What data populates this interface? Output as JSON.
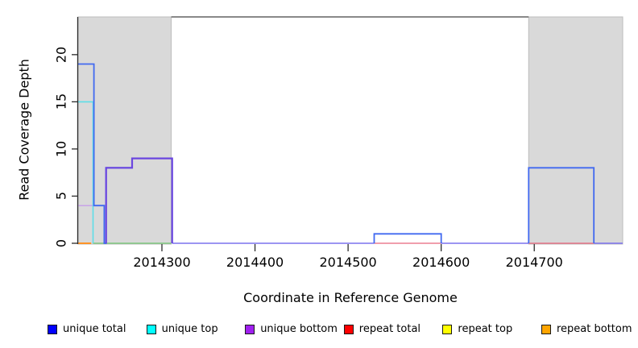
{
  "figure": {
    "background": "#ffffff",
    "plot_bg": "#ffffff",
    "masked_region_fill": "#d9d9d9",
    "masked_region_border": "#bdbdbd",
    "axis_color": "#2b2b2b"
  },
  "x_axis": {
    "title": "Coordinate in Reference Genome",
    "tick_labels": [
      "2014300",
      "2014400",
      "2014500",
      "2014600",
      "2014700"
    ],
    "tick_values": [
      2014300,
      2014400,
      2014500,
      2014600,
      2014700
    ]
  },
  "y_axis": {
    "title": "Read Coverage Depth",
    "tick_labels": [
      "0",
      "5",
      "10",
      "15",
      "20"
    ],
    "tick_values": [
      0,
      5,
      10,
      15,
      20
    ]
  },
  "legend": {
    "position": "bottom",
    "items": [
      {
        "label": "unique total",
        "color": "#0000ff"
      },
      {
        "label": "unique top",
        "color": "#00ffff"
      },
      {
        "label": "unique bottom",
        "color": "#a020f0"
      },
      {
        "label": "repeat total",
        "color": "#ff0000"
      },
      {
        "label": "repeat top",
        "color": "#ffff00"
      },
      {
        "label": "repeat bottom",
        "color": "#ffa500"
      }
    ]
  },
  "chart_data": {
    "type": "step-line",
    "title": "",
    "xlabel": "Coordinate in Reference Genome",
    "ylabel": "Read Coverage Depth",
    "x_range": [
      2014210,
      2014795
    ],
    "y_range": [
      0,
      24
    ],
    "grid": false,
    "masked_regions": [
      {
        "name": "left-masked-region",
        "x_start": 2014210,
        "x_end": 2014310
      },
      {
        "name": "right-masked-region",
        "x_start": 2014694,
        "x_end": 2014795
      }
    ],
    "top_line": {
      "x_start": 2014310,
      "x_end": 2014694,
      "y": 24,
      "color": "#787878",
      "width": 1.7
    },
    "series": [
      {
        "name": "repeat-top-visible",
        "legend": "repeat top",
        "color": "#7fc87f",
        "width": 1.5,
        "polylines": [
          [
            [
              2014226,
              0
            ],
            [
              2014310,
              0
            ]
          ]
        ]
      },
      {
        "name": "repeat-bottom",
        "legend": "repeat bottom",
        "color": "#ff9327",
        "width": 2,
        "polylines": [
          [
            [
              2014210,
              0
            ],
            [
              2014224,
              0
            ]
          ]
        ]
      },
      {
        "name": "repeat-total",
        "legend": "repeat total",
        "color": "#e8637a",
        "width": 1.3,
        "polylines": [
          [
            [
              2014528,
              0
            ],
            [
              2014600,
              0
            ]
          ],
          [
            [
              2014694,
              0
            ],
            [
              2014764,
              0
            ]
          ]
        ]
      },
      {
        "name": "zero-baseline",
        "legend": "unique bottom",
        "color": "#7c72ee",
        "width": 1.5,
        "polylines": [
          [
            [
              2014311,
              0
            ],
            [
              2014528,
              0
            ]
          ],
          [
            [
              2014600,
              0
            ],
            [
              2014694,
              0
            ]
          ],
          [
            [
              2014764,
              0
            ],
            [
              2014795,
              0
            ]
          ]
        ]
      },
      {
        "name": "unique-bottom-low",
        "legend": "unique bottom",
        "color": "#c8a2e8",
        "width": 1.5,
        "polylines": [
          [
            [
              2014210,
              4
            ],
            [
              2014227,
              4
            ]
          ]
        ]
      },
      {
        "name": "unique-top",
        "legend": "unique top",
        "color": "#5cdee8",
        "width": 1.6,
        "polylines": [
          [
            [
              2014210,
              15
            ],
            [
              2014226,
              15
            ],
            [
              2014226,
              0
            ]
          ]
        ]
      },
      {
        "name": "unique-total",
        "legend": "unique total",
        "color": "#4169f0",
        "width": 1.8,
        "polylines": [
          [
            [
              2014210,
              19
            ],
            [
              2014227,
              19
            ],
            [
              2014227,
              4
            ],
            [
              2014238,
              4
            ],
            [
              2014238,
              0
            ],
            [
              2014240,
              0
            ],
            [
              2014240,
              8
            ],
            [
              2014268,
              8
            ],
            [
              2014268,
              9
            ],
            [
              2014311,
              9
            ],
            [
              2014311,
              0
            ]
          ],
          [
            [
              2014528,
              0
            ],
            [
              2014528,
              1
            ],
            [
              2014600,
              1
            ],
            [
              2014600,
              0
            ]
          ],
          [
            [
              2014694,
              0
            ],
            [
              2014694,
              8
            ],
            [
              2014764,
              8
            ],
            [
              2014764,
              0
            ]
          ]
        ]
      },
      {
        "name": "unique-bottom-steps",
        "legend": "unique bottom",
        "color": "#6b46df",
        "width": 2.2,
        "polylines": [
          [
            [
              2014240,
              0
            ],
            [
              2014240,
              8
            ],
            [
              2014268,
              8
            ],
            [
              2014268,
              9
            ],
            [
              2014311,
              9
            ],
            [
              2014311,
              0
            ]
          ]
        ]
      }
    ]
  }
}
